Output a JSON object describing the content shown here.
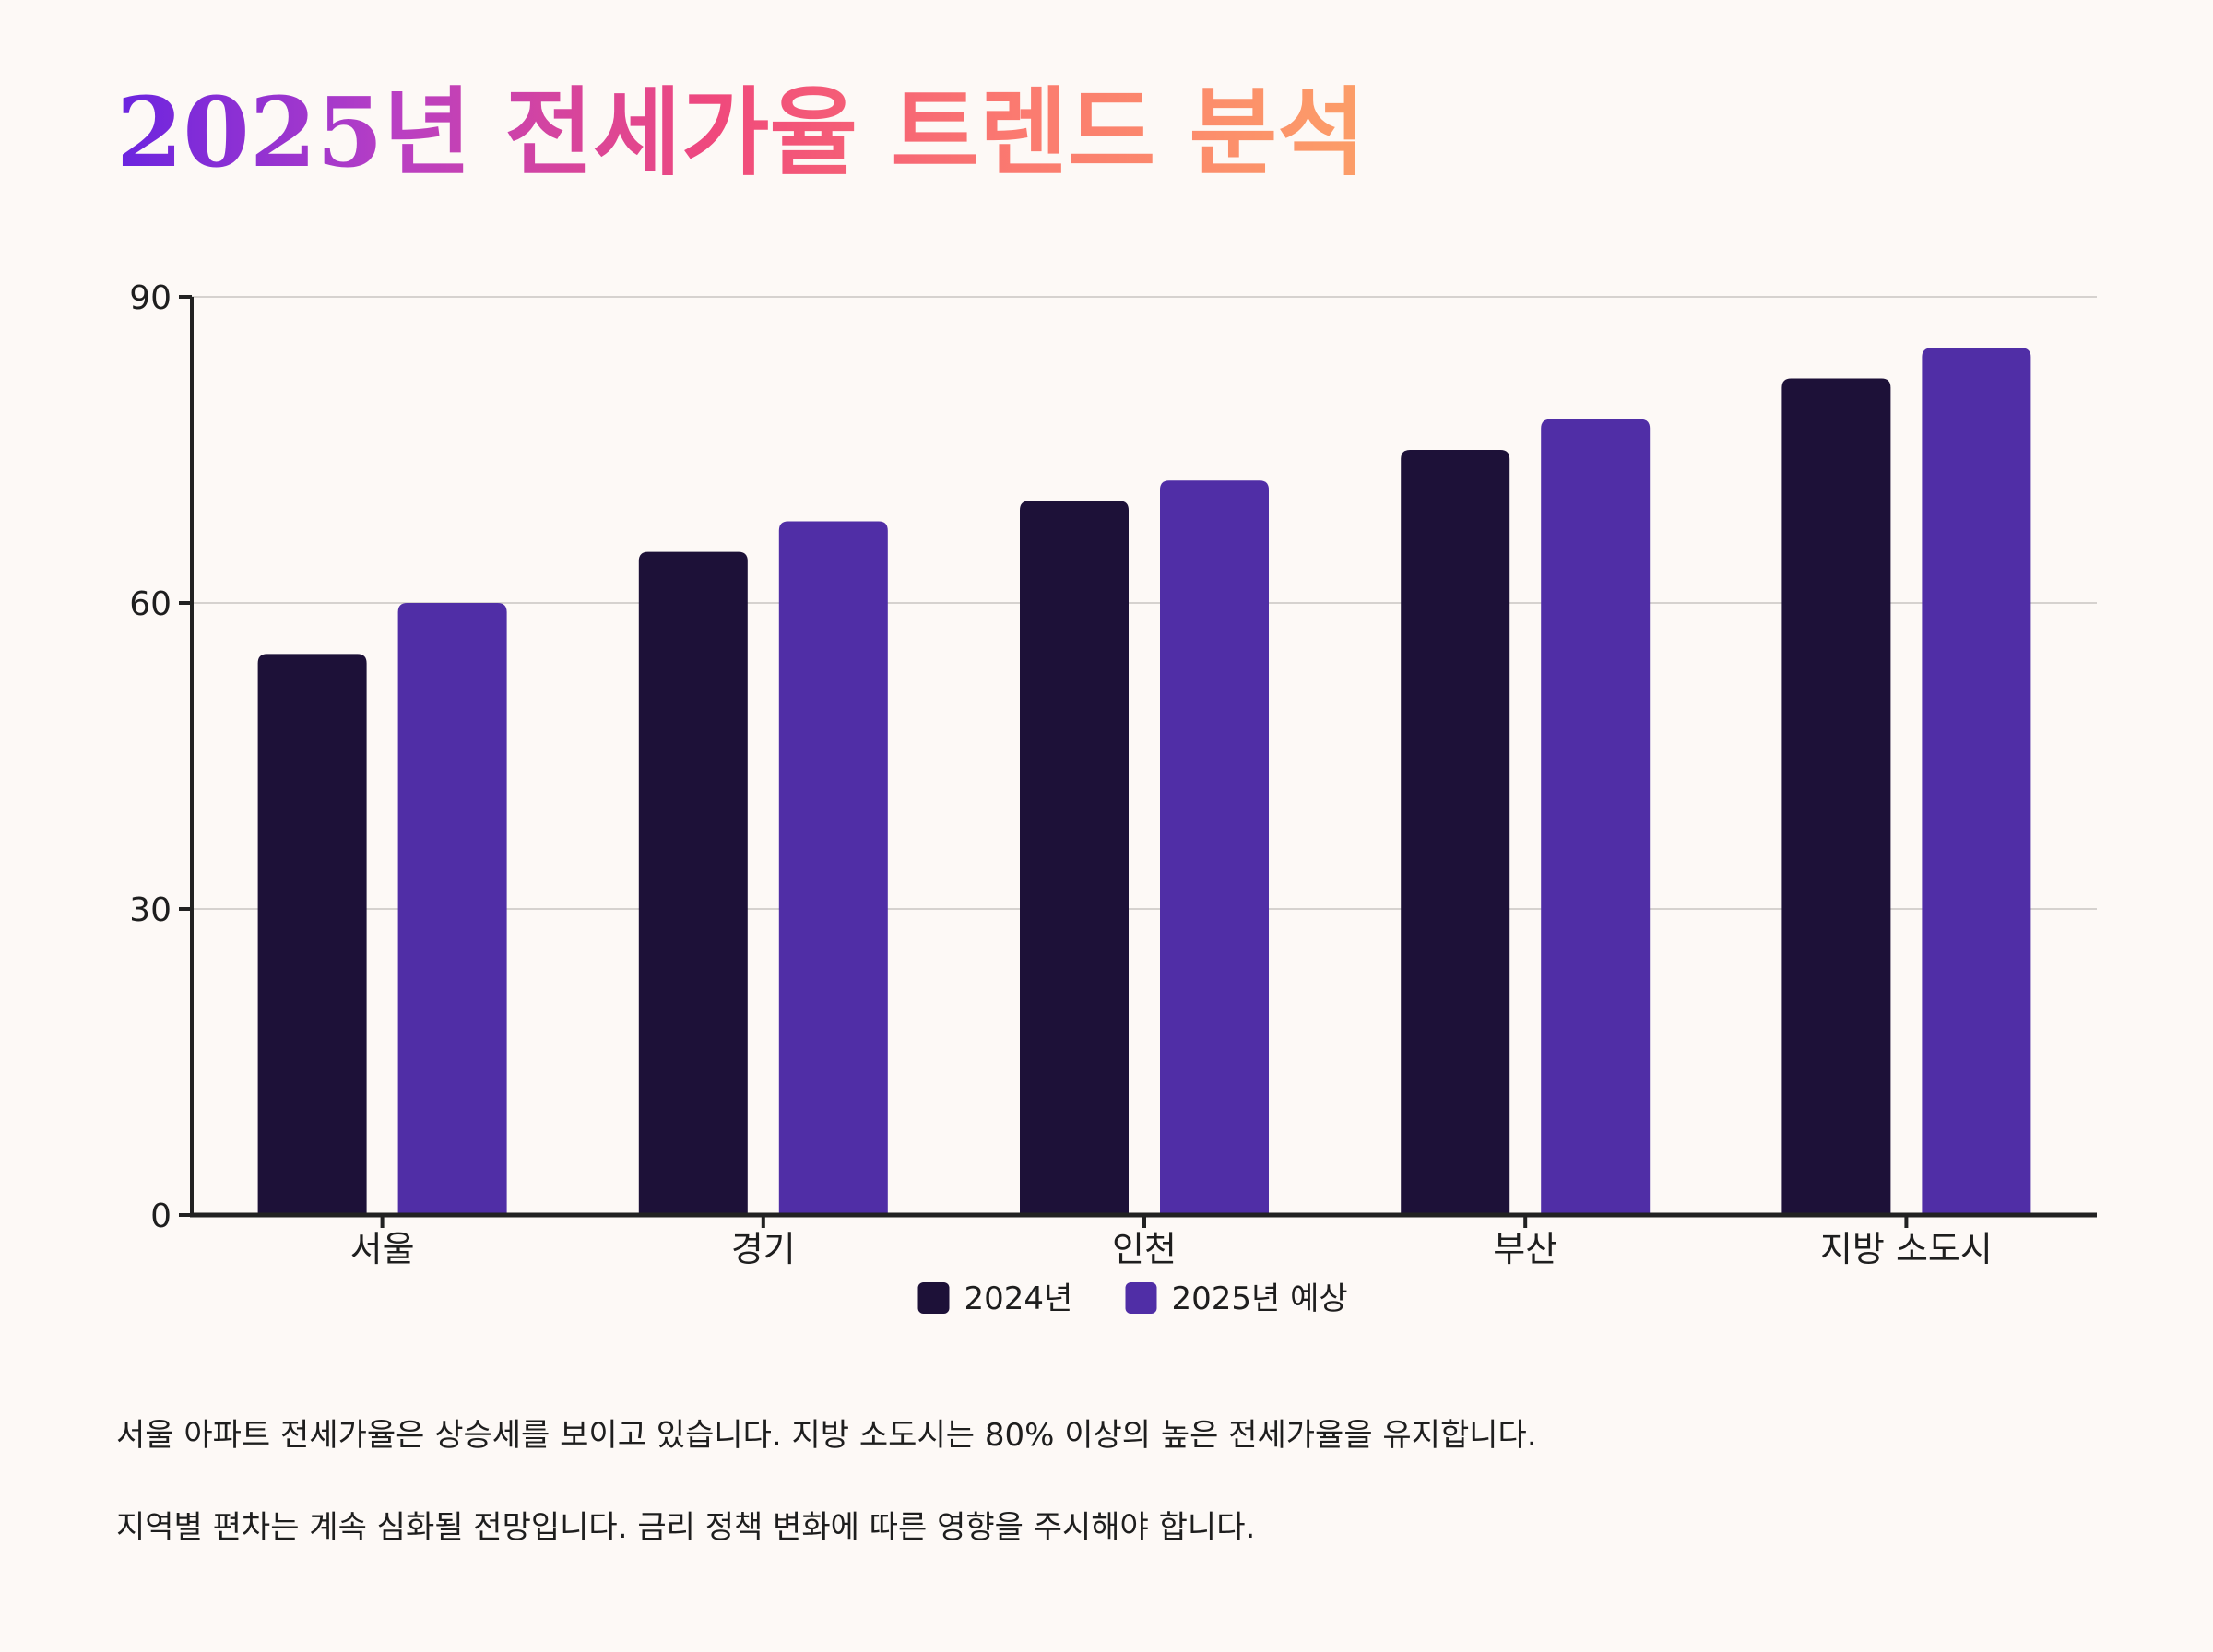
{
  "title": "2025년 전세가율 트렌드 분석",
  "colors": {
    "series_2024": "#1d1138",
    "series_2025": "#502ea6",
    "axis": "#222222",
    "grid": "#d6d2cf",
    "background": "#fdf9f6"
  },
  "chart_data": {
    "type": "bar",
    "categories": [
      "서울",
      "경기",
      "인천",
      "부산",
      "지방 소도시"
    ],
    "series": [
      {
        "name": "2024년",
        "values": [
          55,
          65,
          70,
          75,
          82
        ]
      },
      {
        "name": "2025년 예상",
        "values": [
          60,
          68,
          72,
          78,
          85
        ]
      }
    ],
    "ylim": [
      0,
      90
    ],
    "yticks": [
      0,
      30,
      60,
      90
    ],
    "xlabel": "",
    "ylabel": "",
    "grid": true,
    "legend": "bottom-center"
  },
  "notes": [
    "서울 아파트 전세가율은 상승세를 보이고 있습니다. 지방 소도시는 80% 이상의 높은 전세가율을 유지합니다.",
    "지역별 편차는 계속 심화될 전망입니다. 금리 정책 변화에 따른 영향을 주시해야 합니다."
  ]
}
